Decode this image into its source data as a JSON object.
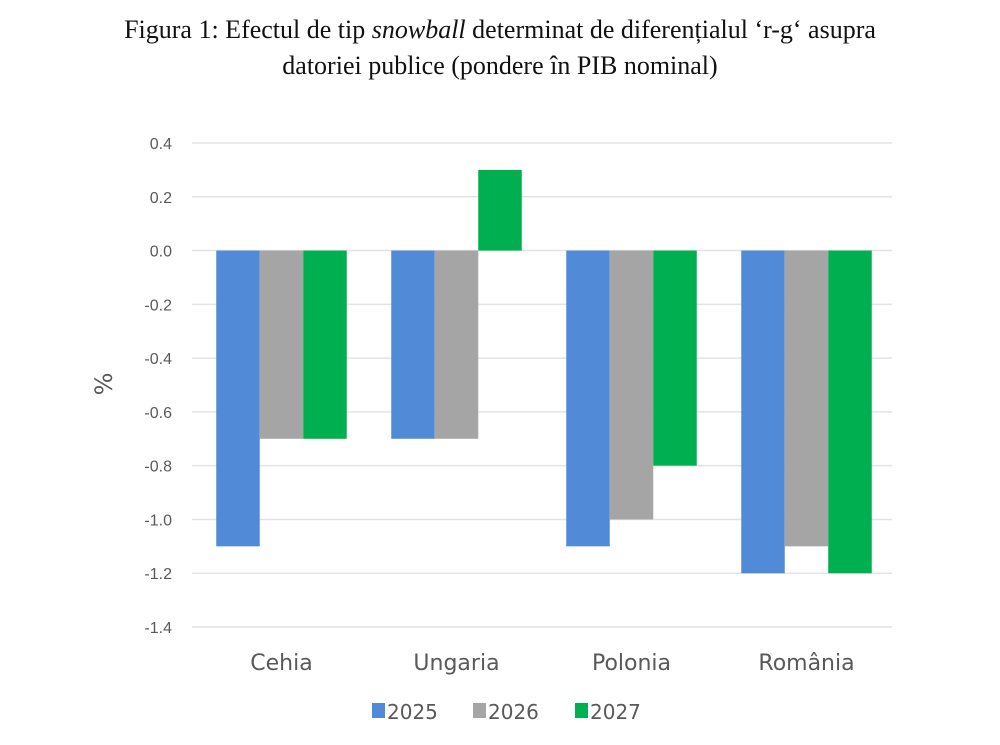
{
  "caption": {
    "prefix": "Figura 1: Efectul de tip ",
    "italic": "snowball",
    "suffix": " determinat de diferențialul ‘r-g‘ asupra",
    "line2": "datoriei publice (pondere în PIB nominal)"
  },
  "chart_data": {
    "type": "bar",
    "title": "Figura 1: Efectul de tip snowball determinat de diferențialul ‘r-g‘ asupra datoriei publice (pondere în PIB nominal)",
    "xlabel": "",
    "ylabel": "%",
    "ylim": [
      -1.4,
      0.4
    ],
    "yticks": [
      0.4,
      0.2,
      0.0,
      -0.2,
      -0.4,
      -0.6,
      -0.8,
      -1.0,
      -1.2,
      -1.4
    ],
    "ytick_labels": [
      "0.4",
      "0.2",
      "0.0",
      "-0.2",
      "-0.4",
      "-0.6",
      "-0.8",
      "-1.0",
      "-1.2",
      "-1.4"
    ],
    "grid": true,
    "legend_position": "bottom",
    "categories": [
      "Cehia",
      "Ungaria",
      "Polonia",
      "România"
    ],
    "series": [
      {
        "name": "2025",
        "color": "#518ad6",
        "values": [
          -1.1,
          -0.7,
          -1.1,
          -1.2
        ]
      },
      {
        "name": "2026",
        "color": "#a5a5a5",
        "values": [
          -0.7,
          -0.7,
          -1.0,
          -1.1
        ]
      },
      {
        "name": "2027",
        "color": "#00b050",
        "values": [
          -0.7,
          0.3,
          -0.8,
          -1.2
        ]
      }
    ]
  }
}
